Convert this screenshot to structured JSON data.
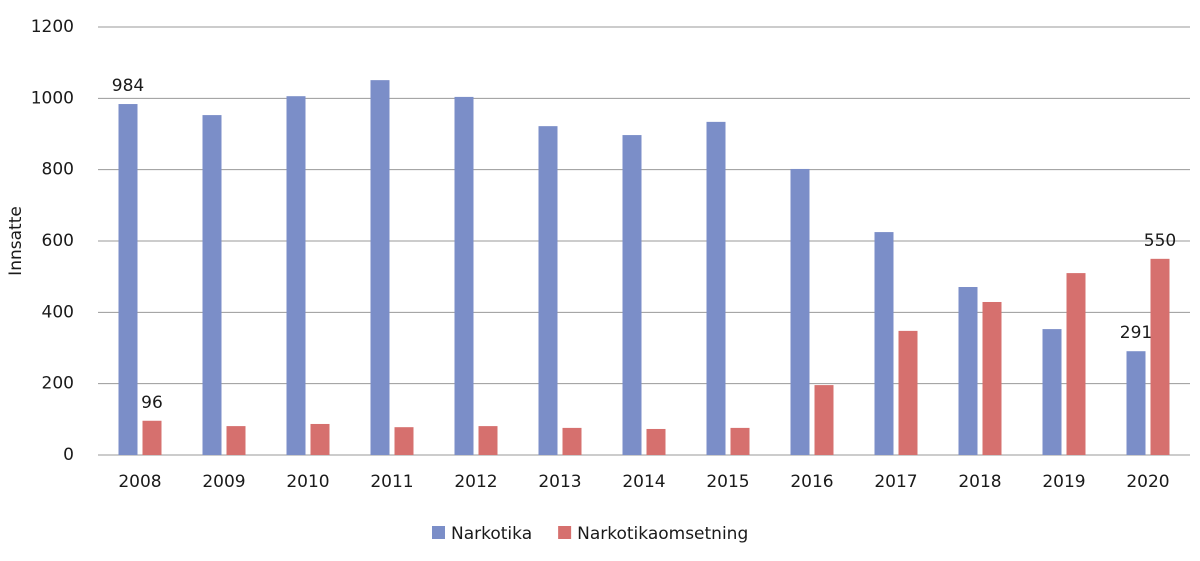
{
  "chart_data": {
    "type": "bar",
    "y_label": "Innsatte",
    "categories": [
      "2008",
      "2009",
      "2010",
      "2011",
      "2012",
      "2013",
      "2014",
      "2015",
      "2016",
      "2017",
      "2018",
      "2019",
      "2020"
    ],
    "series": [
      {
        "name": "Narkotika",
        "color": "#7b8ec8",
        "values": [
          984,
          953,
          1006,
          1051,
          1004,
          922,
          897,
          934,
          802,
          625,
          471,
          353,
          291
        ],
        "value_labels": [
          "984",
          null,
          null,
          null,
          null,
          null,
          null,
          null,
          null,
          null,
          null,
          null,
          "291"
        ]
      },
      {
        "name": "Narkotikaomsetning",
        "color": "#d6706e",
        "values": [
          96,
          81,
          87,
          78,
          81,
          76,
          73,
          76,
          196,
          348,
          429,
          510,
          550
        ],
        "value_labels": [
          "96",
          null,
          null,
          null,
          null,
          null,
          null,
          null,
          null,
          null,
          null,
          null,
          "550"
        ]
      }
    ],
    "ylim": [
      0,
      1200
    ],
    "yticks": [
      0,
      200,
      400,
      600,
      800,
      1000,
      1200
    ],
    "grid": true,
    "legend": "bottom"
  }
}
